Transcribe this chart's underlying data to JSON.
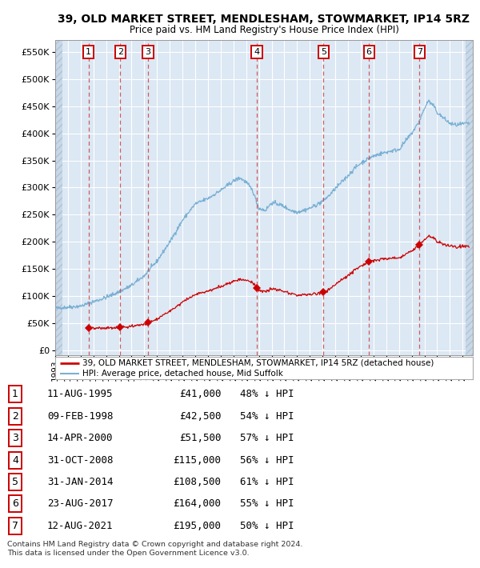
{
  "title": "39, OLD MARKET STREET, MENDLESHAM, STOWMARKET, IP14 5RZ",
  "subtitle": "Price paid vs. HM Land Registry's House Price Index (HPI)",
  "yticks": [
    0,
    50000,
    100000,
    150000,
    200000,
    250000,
    300000,
    350000,
    400000,
    450000,
    500000,
    550000
  ],
  "ylim": [
    -8000,
    572000
  ],
  "xlim_start": 1993.0,
  "xlim_end": 2025.8,
  "bg_color": "#ffffff",
  "plot_bg_color": "#dce8f4",
  "grid_color": "#ffffff",
  "red_line_color": "#cc0000",
  "blue_line_color": "#7ab0d4",
  "dashed_line_color": "#cc4444",
  "transactions": [
    {
      "num": 1,
      "date_dec": 1995.61,
      "price": 41000,
      "label": "11-AUG-1995",
      "amount": "£41,000",
      "pct": "48% ↓ HPI"
    },
    {
      "num": 2,
      "date_dec": 1998.11,
      "price": 42500,
      "label": "09-FEB-1998",
      "amount": "£42,500",
      "pct": "54% ↓ HPI"
    },
    {
      "num": 3,
      "date_dec": 2000.29,
      "price": 51500,
      "label": "14-APR-2000",
      "amount": "£51,500",
      "pct": "57% ↓ HPI"
    },
    {
      "num": 4,
      "date_dec": 2008.83,
      "price": 115000,
      "label": "31-OCT-2008",
      "amount": "£115,000",
      "pct": "56% ↓ HPI"
    },
    {
      "num": 5,
      "date_dec": 2014.08,
      "price": 108500,
      "label": "31-JAN-2014",
      "amount": "£108,500",
      "pct": "61% ↓ HPI"
    },
    {
      "num": 6,
      "date_dec": 2017.64,
      "price": 164000,
      "label": "23-AUG-2017",
      "amount": "£164,000",
      "pct": "55% ↓ HPI"
    },
    {
      "num": 7,
      "date_dec": 2021.62,
      "price": 195000,
      "label": "12-AUG-2021",
      "amount": "£195,000",
      "pct": "50% ↓ HPI"
    }
  ],
  "legend_red": "39, OLD MARKET STREET, MENDLESHAM, STOWMARKET, IP14 5RZ (detached house)",
  "legend_blue": "HPI: Average price, detached house, Mid Suffolk",
  "footer1": "Contains HM Land Registry data © Crown copyright and database right 2024.",
  "footer2": "This data is licensed under the Open Government Licence v3.0."
}
